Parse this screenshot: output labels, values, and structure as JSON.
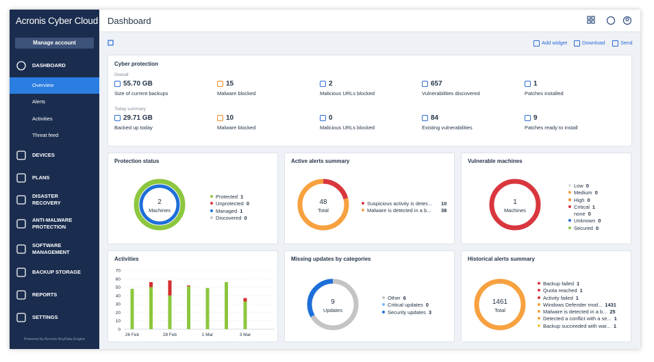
{
  "sidebar": {
    "brand": "Acronis Cyber Cloud",
    "manage_button": "Manage account",
    "nav": [
      {
        "label": "DASHBOARD",
        "children": [
          "Overview",
          "Alerts",
          "Activities",
          "Threat feed"
        ]
      },
      {
        "label": "DEVICES"
      },
      {
        "label": "PLANS"
      },
      {
        "label": "DISASTER RECOVERY"
      },
      {
        "label": "ANTI-MALWARE PROTECTION"
      },
      {
        "label": "SOFTWARE MANAGEMENT"
      },
      {
        "label": "BACKUP STORAGE"
      },
      {
        "label": "REPORTS"
      },
      {
        "label": "SETTINGS"
      }
    ],
    "footer": "Powered by Acronis AnyData Engine"
  },
  "header": {
    "title": "Dashboard"
  },
  "toolbar": [
    "Add widget",
    "Download",
    "Send"
  ],
  "cyber_protection": {
    "title": "Cyber protection",
    "sections": [
      {
        "label": "Overall",
        "items": [
          {
            "value": "55.70 GB",
            "label": "Size of current backups"
          },
          {
            "value": "15",
            "label": "Malware blocked"
          },
          {
            "value": "2",
            "label": "Malicious URLs blocked"
          },
          {
            "value": "657",
            "label": "Vulnerabilities discovered"
          },
          {
            "value": "1",
            "label": "Patches installed"
          }
        ]
      },
      {
        "label": "Today summary",
        "items": [
          {
            "value": "29.71 GB",
            "label": "Backed up today"
          },
          {
            "value": "10",
            "label": "Malware blocked"
          },
          {
            "value": "0",
            "label": "Malicious URLs blocked"
          },
          {
            "value": "84",
            "label": "Existing vulnerabilities"
          },
          {
            "value": "9",
            "label": "Patches ready to install"
          }
        ]
      }
    ]
  },
  "widgets": [
    {
      "title": "Protection status",
      "center_value": "2",
      "center_label": "Machines",
      "items": [
        {
          "name": "Protected",
          "value": 1,
          "color": "#8dc63f"
        },
        {
          "name": "Unprotected",
          "value": 0,
          "color": "#d9363e"
        },
        {
          "name": "Managed",
          "value": 1,
          "color": "#1e6fd9"
        },
        {
          "name": "Discovered",
          "value": 0,
          "color": "#c8c8c8"
        }
      ]
    },
    {
      "title": "Active alerts summary",
      "center_value": "48",
      "center_label": "Total",
      "items": [
        {
          "name": "Suspicious activity is detec...",
          "value": 10,
          "color": "#d9363e"
        },
        {
          "name": "Malware is detected in a b...",
          "value": 38,
          "color": "#f7a13f"
        }
      ]
    },
    {
      "title": "Vulnerable machines",
      "center_value": "1",
      "center_label": "Machines",
      "items": [
        {
          "name": "Low",
          "value": 0,
          "color": "#dcdcdc"
        },
        {
          "name": "Medium",
          "value": 0,
          "color": "#f7a13f"
        },
        {
          "name": "High",
          "value": 0,
          "color": "#f08a24"
        },
        {
          "name": "Critical",
          "value": 1,
          "color": "#d9363e"
        },
        {
          "name": "none",
          "value": 0
        },
        {
          "name": "Unknown",
          "value": 0,
          "color": "#2a6ad5"
        },
        {
          "name": "Secured",
          "value": 0,
          "color": "#8dc63f"
        }
      ]
    },
    {
      "title": "Missing updates by categories",
      "center_value": "9",
      "center_label": "Updates",
      "items": [
        {
          "name": "Other",
          "value": 6,
          "color": "#c4c4c4"
        },
        {
          "name": "Critical updates",
          "value": 0,
          "color": "#7ab8f0"
        },
        {
          "name": "Security updates",
          "value": 3,
          "color": "#1e6fd9"
        }
      ]
    },
    {
      "title": "Historical alerts summary",
      "center_value": "1461",
      "center_label": "Total",
      "items": [
        {
          "name": "Backup failed",
          "value": 1,
          "color": "#d9363e"
        },
        {
          "name": "Quota reached",
          "value": 1,
          "color": "#d9363e"
        },
        {
          "name": "Activity failed",
          "value": 1,
          "color": "#d9363e"
        },
        {
          "name": "Windows Defender mod...",
          "value": 1431,
          "color": "#f7a13f"
        },
        {
          "name": "Malware is detected in a b...",
          "value": 25,
          "color": "#f7a13f"
        },
        {
          "name": "Detected a conflict with a se...",
          "value": 1,
          "color": "#f7a13f"
        },
        {
          "name": "Backup succeeded with war...",
          "value": 1,
          "color": "#f6c945"
        }
      ]
    }
  ],
  "activities": {
    "title": "Activities",
    "type": "bar",
    "stacked": true,
    "categories": [
      "26 Feb",
      null,
      "28 Feb",
      null,
      "1 Mar",
      null,
      "3 Mar"
    ],
    "series": [
      {
        "color": "#8dc63f",
        "values": [
          48,
          50,
          40,
          51,
          49,
          56,
          33
        ]
      },
      {
        "color": "#d32f2f",
        "values": [
          0,
          6,
          18,
          1,
          0,
          0,
          4
        ]
      }
    ],
    "ylim": [
      0,
      70
    ],
    "yticks": [
      0,
      10,
      20,
      30,
      40,
      50,
      60,
      70
    ],
    "grid": true
  }
}
